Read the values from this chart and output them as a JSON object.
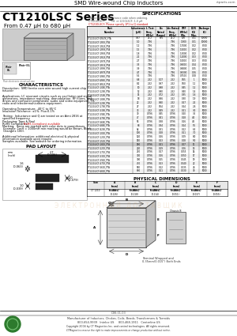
{
  "title_top": "SMD Wire-wound Chip Inductors",
  "website": "ctparts.com",
  "series_title": "CT1210LSC Series",
  "series_subtitle": "From 0.47 μH to 680 μH",
  "section_specs": "SPECIFICATIONS",
  "col_headers": [
    "Part\nNumber",
    "Inductance\n(μH)",
    "L Test\nFreq.\n(MHz)",
    "Idc\nRated\n(Amps)",
    "Idc Rated\nFreq.\n(MHz)",
    "SRF\n(MHz)\nMin.",
    "DCR\n(Ω)\nMax.",
    "Package\n(E)"
  ],
  "table_data": [
    [
      "CT1210LSCF-0R47K_PTA",
      "0.47",
      "25.2",
      "801",
      "25.2",
      "100",
      "0.01",
      "10000"
    ],
    [
      "CT1210LSCF-1R0K_PTA",
      "1.0",
      "7.96",
      "",
      "7.96",
      "1.900",
      "0.01",
      "10000"
    ],
    [
      "CT1210LSCF-1R2K_PTA",
      "1.2",
      "7.96",
      "",
      "7.96",
      "1.7000",
      "0.02",
      "8700"
    ],
    [
      "CT1210LSCF-1R5K_PTA",
      "1.5",
      "7.96",
      "",
      "7.96",
      "1.5000",
      "0.02",
      "8700"
    ],
    [
      "CT1210LSCF-1R8K_PTA",
      "1.8",
      "7.96",
      "",
      "7.96",
      "1.3000",
      "0.02",
      "8700"
    ],
    [
      "CT1210LSCF-2R2K_PTA",
      "2.2",
      "7.96",
      "",
      "7.96",
      "1.2000",
      "0.03",
      "8700"
    ],
    [
      "CT1210LSCF-2R7K_PTA",
      "2.7",
      "7.96",
      "",
      "7.96",
      "1.0000",
      "0.03",
      "8700"
    ],
    [
      "CT1210LSCF-3R3K_PTA",
      "3.3",
      "7.96",
      "",
      "7.96",
      "0.9000",
      "0.04",
      "8700"
    ],
    [
      "CT1210LSCF-3R9K_PTA",
      "3.9",
      "7.96",
      "",
      "7.96",
      "0.8800",
      "0.05",
      "8700"
    ],
    [
      "CT1210LSCF-4R7K_PTA",
      "4.7",
      "7.96",
      "",
      "7.96",
      "0.8300",
      "0.06",
      "8700"
    ],
    [
      "CT1210LSCF-5R6K_PTA",
      "5.6",
      "7.96",
      "",
      "7.96",
      "0.7500",
      "0.08",
      "8700"
    ],
    [
      "CT1210LSCF-6R8K_PTA",
      "6.8",
      "2.52",
      "1.07",
      "2.52",
      "0.55",
      "1",
      "5000"
    ],
    [
      "CT1210LSCF-8R2K_PTA",
      "8.2",
      "2.52",
      "0.97",
      "2.52",
      "0.50",
      "1.1",
      "5000"
    ],
    [
      "CT1210LSCF-100K_PTA",
      "10",
      "2.52",
      "0.88",
      "2.52",
      "0.45",
      "1.2",
      "5000"
    ],
    [
      "CT1210LSCF-120K_PTA",
      "12",
      "2.52",
      "0.80",
      "2.52",
      "0.40",
      "1.4",
      "5000"
    ],
    [
      "CT1210LSCF-150K_PTA",
      "15",
      "2.52",
      "0.72",
      "2.52",
      "0.35",
      "1.6",
      "5000"
    ],
    [
      "CT1210LSCF-180K_PTA",
      "18",
      "2.52",
      "0.66",
      "2.52",
      "0.30",
      "1.9",
      "5000"
    ],
    [
      "CT1210LSCF-220K_PTA",
      "22",
      "2.52",
      "0.60",
      "2.52",
      "0.27",
      "2.2",
      "5000"
    ],
    [
      "CT1210LSCF-270K_PTA",
      "27",
      "2.52",
      "0.54",
      "2.52",
      "0.24",
      "2.6",
      "5000"
    ],
    [
      "CT1210LSCF-330K_PTA",
      "33",
      "2.52",
      "0.49",
      "2.52",
      "0.21",
      "3.0",
      "5000"
    ],
    [
      "CT1210LSCF-390K_PTA",
      "39",
      "0.796",
      "0.45",
      "0.796",
      "0.20",
      "3.5",
      "5000"
    ],
    [
      "CT1210LSCF-470K_PTA",
      "47",
      "0.796",
      "0.41",
      "0.796",
      "0.18",
      "4.0",
      "5000"
    ],
    [
      "CT1210LSCF-560K_PTA",
      "56",
      "0.796",
      "0.38",
      "0.796",
      "0.16",
      "4.5",
      "5000"
    ],
    [
      "CT1210LSCF-680K_PTA",
      "68",
      "0.796",
      "0.34",
      "0.796",
      "0.14",
      "5.5",
      "5000"
    ],
    [
      "CT1210LSCF-820K_PTA",
      "82",
      "0.796",
      "0.31",
      "0.796",
      "0.12",
      "6.3",
      "5000"
    ],
    [
      "CT1210LSCF-101K_PTA",
      "100",
      "0.796",
      "0.28",
      "0.796",
      "0.11",
      "7.0",
      "5000"
    ],
    [
      "CT1210LSCF-121K_PTA",
      "120",
      "0.796",
      "0.26",
      "0.796",
      "0.09",
      "8.0",
      "5000"
    ],
    [
      "CT1210LSCF-151K_PTA",
      "150",
      "0.796",
      "0.23",
      "0.796",
      "0.08",
      "9.0",
      "5000"
    ],
    [
      "CT1210LSCF-181K_PTA",
      "180",
      "0.796",
      "0.21",
      "0.796",
      "0.07",
      "11",
      "5000"
    ],
    [
      "CT1210LSCF-221K_PTA",
      "220",
      "0.796",
      "0.19",
      "0.796",
      "0.06",
      "13",
      "5000"
    ],
    [
      "CT1210LSCF-271K_PTA",
      "270",
      "0.796",
      "0.17",
      "0.796",
      "0.055",
      "14",
      "5000"
    ],
    [
      "CT1210LSCF-331K_PTA",
      "330",
      "0.796",
      "0.16",
      "0.796",
      "0.050",
      "17",
      "5000"
    ],
    [
      "CT1210LSCF-391K_PTA",
      "390",
      "0.796",
      "0.15",
      "0.796",
      "0.045",
      "19",
      "5000"
    ],
    [
      "CT1210LSCF-471K_PTA",
      "470",
      "0.796",
      "0.13",
      "0.796",
      "0.040",
      "22",
      "5000"
    ],
    [
      "CT1210LSCF-561K_PTA",
      "560",
      "0.796",
      "0.12",
      "0.796",
      "0.035",
      "26",
      "5000"
    ],
    [
      "CT1210LSCF-681K_PTA",
      "680",
      "0.796",
      "0.11",
      "0.796",
      "0.030",
      "30",
      "5000"
    ]
  ],
  "highlighted_row": 28,
  "characteristics_title": "CHARACTERISTICS",
  "physical_dims_title": "PHYSICAL DIMENSIONS",
  "pad_layout_title": "PAD LAYOUT",
  "footer_text1": "Manufacturer of Inductors, Chokes, Coils, Beads, Transformers & Torroids",
  "footer_text2": "800-654-9939   Intelco US     800-468-1911   Centerline US",
  "footer_text3": "Copyright 2004 by CT Magnetics Inc. and control technologies. All rights reserved.",
  "footer_text4": "CTMagnetics reserve the right to make improvements or change production without notice.",
  "doc_num": "D98-01-03",
  "rohs_color": "#cc0000",
  "watermark_text": "Э Л Е К Т Р О Н Н Ы Й   Д О С Т А В Щ И К"
}
